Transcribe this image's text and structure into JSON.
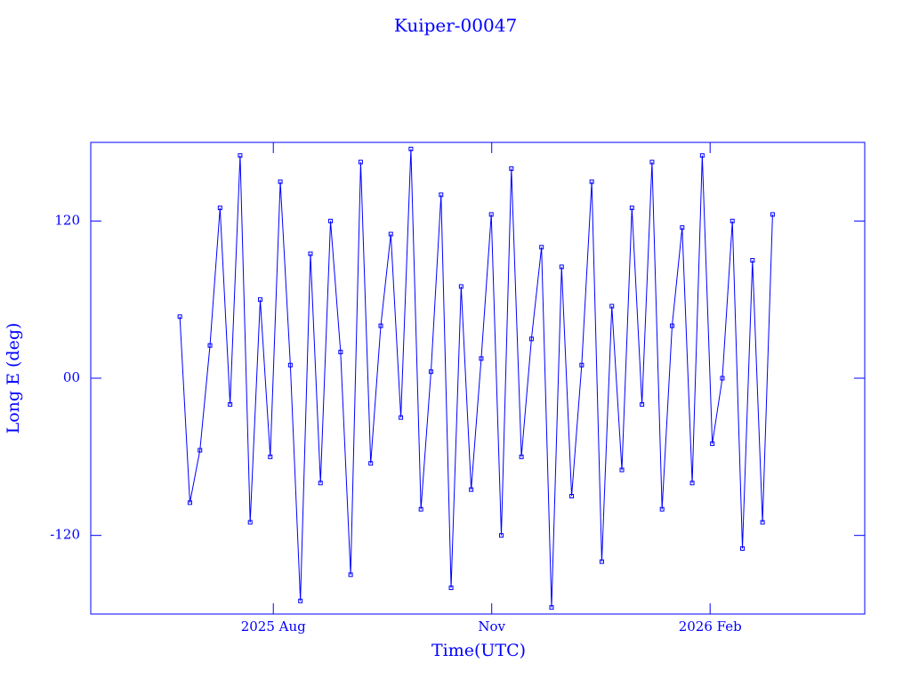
{
  "chart_data": {
    "type": "line",
    "title": "Kuiper-00047",
    "x_label": "Time(UTC)",
    "y_label": "Long E (deg)",
    "color": "#0000ff",
    "x": [
      2025.476,
      2025.4875,
      2025.499,
      2025.5105,
      2025.522,
      2025.5335,
      2025.545,
      2025.5565,
      2025.568,
      2025.5795,
      2025.591,
      2025.6025,
      2025.614,
      2025.6255,
      2025.637,
      2025.6485,
      2025.66,
      2025.6715,
      2025.683,
      2025.6945,
      2025.706,
      2025.7175,
      2025.729,
      2025.7405,
      2025.752,
      2025.7635,
      2025.775,
      2025.7865,
      2025.798,
      2025.8095,
      2025.821,
      2025.8325,
      2025.844,
      2025.8555,
      2025.867,
      2025.8785,
      2025.89,
      2025.9015,
      2025.913,
      2025.9245,
      2025.936,
      2025.9475,
      2025.959,
      2025.9705,
      2025.982,
      2025.9935,
      2026.005,
      2026.0165,
      2026.028,
      2026.0395,
      2026.051,
      2026.0625,
      2026.074,
      2026.0855,
      2026.097,
      2026.1085,
      2026.12,
      2026.1315,
      2026.143,
      2026.1545
    ],
    "values": [
      47,
      -95,
      -55,
      25,
      130,
      -20,
      170,
      -110,
      60,
      -60,
      150,
      10,
      -170,
      95,
      -80,
      120,
      20,
      -150,
      165,
      -65,
      40,
      110,
      -30,
      175,
      -100,
      5,
      140,
      -160,
      70,
      -85,
      15,
      125,
      -120,
      160,
      -60,
      30,
      100,
      -175,
      85,
      -90,
      10,
      150,
      -140,
      55,
      -70,
      130,
      -20,
      165,
      -100,
      40,
      115,
      -80,
      170,
      -50,
      0,
      120,
      -130,
      90,
      -110,
      125
    ],
    "xlim": [
      2025.374,
      2026.26
    ],
    "ylim": [
      -180,
      180
    ],
    "xticks": [
      {
        "value": 2025.583,
        "label": "2025 Aug"
      },
      {
        "value": 2025.833,
        "label": "Nov"
      },
      {
        "value": 2026.083,
        "label": "2026 Feb"
      }
    ],
    "yticks": [
      -120,
      {
        "value": 0,
        "label": "00"
      },
      120
    ]
  }
}
